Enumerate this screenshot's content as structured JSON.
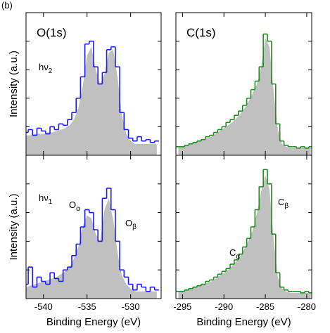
{
  "panel_label": "(b)",
  "chart_data": [
    {
      "type": "step-area",
      "title": "O(1s)",
      "ylabel": "Intensity (a.u.)",
      "annotations": [
        {
          "text": "hν",
          "sub": "2"
        }
      ],
      "x": [
        -542,
        -541.5,
        -541,
        -540.5,
        -540,
        -539.5,
        -539,
        -538.5,
        -538,
        -537.5,
        -537,
        -536.5,
        -536,
        -535.5,
        -535,
        -534.5,
        -534,
        -533.5,
        -533,
        -532.5,
        -532,
        -531.5,
        -531,
        -530.5,
        -530,
        -529.5,
        -529,
        -528.5,
        -528,
        -527.5,
        -527
      ],
      "series": [
        {
          "color": "#c0c0c0",
          "style": "area",
          "values": [
            0.14,
            0.14,
            0.15,
            0.15,
            0.15,
            0.16,
            0.16,
            0.17,
            0.18,
            0.19,
            0.21,
            0.25,
            0.33,
            0.48,
            0.7,
            0.76,
            0.6,
            0.5,
            0.57,
            0.72,
            0.74,
            0.55,
            0.28,
            0.15,
            0.1,
            0.08,
            0.08,
            0.08,
            0.08,
            0.08,
            0.08
          ]
        },
        {
          "color": "#1a1aff",
          "style": "step",
          "values": [
            0.16,
            0.18,
            0.14,
            0.19,
            0.17,
            0.15,
            0.2,
            0.18,
            0.22,
            0.21,
            0.25,
            0.3,
            0.4,
            0.55,
            0.78,
            0.8,
            0.62,
            0.5,
            0.58,
            0.74,
            0.76,
            0.62,
            0.3,
            0.18,
            0.12,
            0.1,
            0.13,
            0.1,
            0.11,
            0.09,
            0.1
          ]
        }
      ],
      "xlim": [
        -542,
        -526.5
      ],
      "xticks": [
        -540,
        -535,
        -530
      ],
      "xticklabels": false,
      "ylim": [
        0,
        1
      ],
      "yticks": [
        0.2,
        0.4,
        0.6,
        0.8
      ]
    },
    {
      "type": "step-area",
      "title": "C(1s)",
      "x": [
        -295.5,
        -295,
        -294.5,
        -294,
        -293.5,
        -293,
        -292.5,
        -292,
        -291.5,
        -291,
        -290.5,
        -290,
        -289.5,
        -289,
        -288.5,
        -288,
        -287.5,
        -287,
        -286.5,
        -286,
        -285.5,
        -285,
        -284.5,
        -284,
        -283.5,
        -283,
        -282.5,
        -282,
        -281.5,
        -281,
        -280.5,
        -280,
        -279.5
      ],
      "series": [
        {
          "color": "#c0c0c0",
          "style": "area",
          "values": [
            0.06,
            0.06,
            0.07,
            0.08,
            0.09,
            0.1,
            0.11,
            0.12,
            0.13,
            0.15,
            0.17,
            0.19,
            0.21,
            0.23,
            0.26,
            0.29,
            0.33,
            0.38,
            0.44,
            0.5,
            0.62,
            0.82,
            0.76,
            0.45,
            0.18,
            0.08,
            0.06,
            0.05,
            0.05,
            0.05,
            0.05,
            0.05,
            0.05
          ]
        },
        {
          "color": "#228b22",
          "style": "step",
          "values": [
            0.06,
            0.06,
            0.07,
            0.08,
            0.09,
            0.1,
            0.11,
            0.13,
            0.14,
            0.16,
            0.18,
            0.2,
            0.23,
            0.25,
            0.28,
            0.31,
            0.35,
            0.4,
            0.46,
            0.52,
            0.62,
            0.85,
            0.8,
            0.5,
            0.22,
            0.1,
            0.07,
            0.06,
            0.06,
            0.05,
            0.06,
            0.05,
            0.06
          ]
        }
      ],
      "xlim": [
        -295.8,
        -279.4
      ],
      "xticks": [
        -295,
        -290,
        -285,
        -280
      ],
      "xticklabels": false,
      "ylim": [
        0,
        1
      ],
      "yticks": [
        0.2,
        0.4,
        0.6,
        0.8
      ]
    },
    {
      "type": "step-area",
      "ylabel": "Intensity (a.u.)",
      "xlabel": "Binding Energy (eV)",
      "annotations": [
        {
          "text": "hν",
          "sub": "1"
        },
        {
          "text": "O",
          "sub": "α"
        },
        {
          "text": "O",
          "sub": "β"
        }
      ],
      "x": [
        -542,
        -541.5,
        -541,
        -540.5,
        -540,
        -539.5,
        -539,
        -538.5,
        -538,
        -537.5,
        -537,
        -536.5,
        -536,
        -535.5,
        -535,
        -534.5,
        -534,
        -533.5,
        -533,
        -532.5,
        -532,
        -531.5,
        -531,
        -530.5,
        -530,
        -529.5,
        -529,
        -528.5,
        -528,
        -527.5,
        -527
      ],
      "series": [
        {
          "color": "#c0c0c0",
          "style": "area",
          "values": [
            0.08,
            0.09,
            0.1,
            0.11,
            0.12,
            0.13,
            0.14,
            0.15,
            0.17,
            0.19,
            0.22,
            0.28,
            0.36,
            0.5,
            0.58,
            0.56,
            0.45,
            0.4,
            0.62,
            0.7,
            0.55,
            0.32,
            0.16,
            0.1,
            0.07,
            0.05,
            0.05,
            0.05,
            0.05,
            0.05,
            0.05
          ]
        },
        {
          "color": "#1a1aff",
          "style": "step",
          "values": [
            0.1,
            0.22,
            0.08,
            0.15,
            0.12,
            0.1,
            0.18,
            0.14,
            0.12,
            0.2,
            0.22,
            0.3,
            0.38,
            0.5,
            0.62,
            0.6,
            0.48,
            0.4,
            0.7,
            0.77,
            0.62,
            0.4,
            0.2,
            0.15,
            0.1,
            0.06,
            0.1,
            0.08,
            0.05,
            0.08,
            0.06
          ]
        }
      ],
      "xlim": [
        -542,
        -526.5
      ],
      "xticks": [
        -540,
        -535,
        -530
      ],
      "xticklabels": true,
      "ylim": [
        0,
        1
      ],
      "yticks": [
        0.2,
        0.4,
        0.6,
        0.8
      ]
    },
    {
      "type": "step-area",
      "xlabel": "Binding Energy (eV)",
      "annotations": [
        {
          "text": "C",
          "sub": "α"
        },
        {
          "text": "C",
          "sub": "β"
        }
      ],
      "x": [
        -295.5,
        -295,
        -294.5,
        -294,
        -293.5,
        -293,
        -292.5,
        -292,
        -291.5,
        -291,
        -290.5,
        -290,
        -289.5,
        -289,
        -288.5,
        -288,
        -287.5,
        -287,
        -286.5,
        -286,
        -285.5,
        -285,
        -284.5,
        -284,
        -283.5,
        -283,
        -282.5,
        -282,
        -281.5,
        -281,
        -280.5,
        -280,
        -279.5
      ],
      "series": [
        {
          "color": "#c0c0c0",
          "style": "area",
          "values": [
            0.05,
            0.05,
            0.06,
            0.07,
            0.08,
            0.09,
            0.1,
            0.11,
            0.12,
            0.14,
            0.16,
            0.18,
            0.2,
            0.23,
            0.26,
            0.3,
            0.35,
            0.41,
            0.48,
            0.6,
            0.75,
            0.86,
            0.76,
            0.42,
            0.15,
            0.07,
            0.05,
            0.04,
            0.04,
            0.04,
            0.04,
            0.04,
            0.04
          ]
        },
        {
          "color": "#228b22",
          "style": "step",
          "values": [
            0.05,
            0.05,
            0.06,
            0.07,
            0.08,
            0.09,
            0.1,
            0.12,
            0.13,
            0.15,
            0.17,
            0.19,
            0.21,
            0.24,
            0.27,
            0.31,
            0.36,
            0.42,
            0.5,
            0.62,
            0.78,
            0.9,
            0.8,
            0.45,
            0.18,
            0.08,
            0.06,
            0.05,
            0.05,
            0.05,
            0.04,
            0.05,
            0.04
          ]
        }
      ],
      "xlim": [
        -295.8,
        -279.4
      ],
      "xticks": [
        -295,
        -290,
        -285,
        -280
      ],
      "xticklabels": true,
      "ylim": [
        0,
        1
      ],
      "yticks": [
        0.2,
        0.4,
        0.6,
        0.8
      ]
    }
  ]
}
